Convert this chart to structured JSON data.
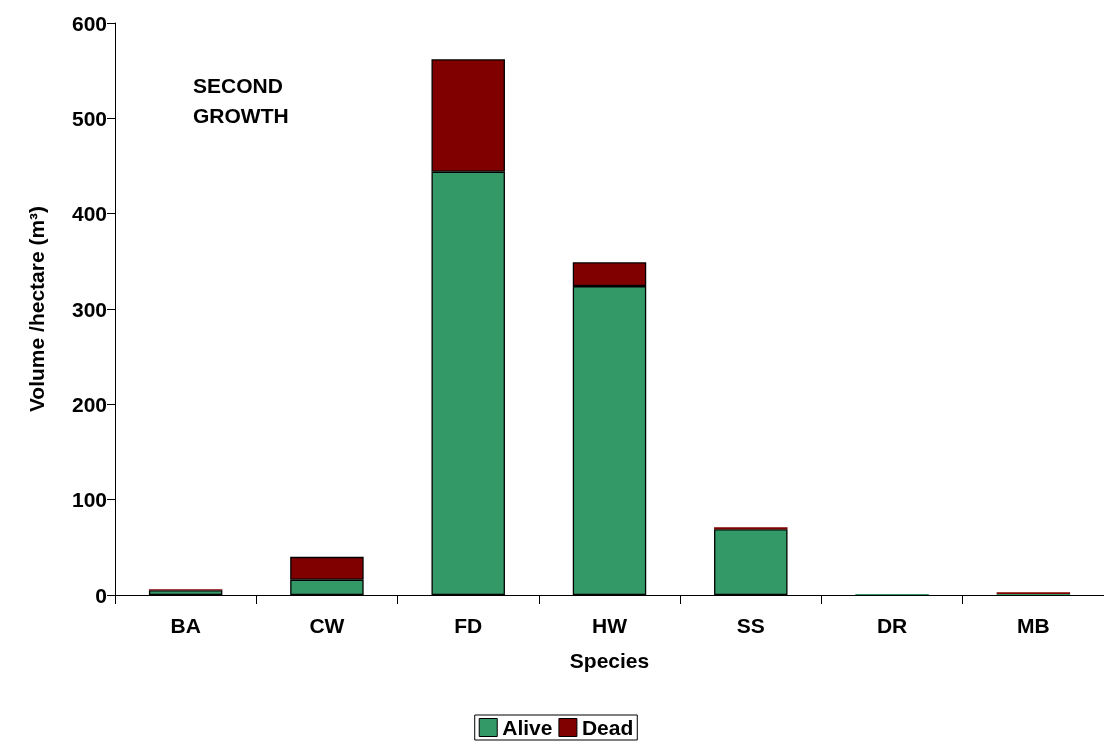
{
  "chart_data": {
    "type": "bar",
    "stacked": true,
    "xlabel": "Species",
    "ylabel": "Volume /hectare (m³)",
    "categories": [
      "BA",
      "CW",
      "FD",
      "HW",
      "SS",
      "DR",
      "MB"
    ],
    "series": [
      {
        "name": "Alive",
        "color": "#339966",
        "values": [
          5,
          16,
          444,
          324,
          69,
          1,
          1
        ]
      },
      {
        "name": "Dead",
        "color": "#800000",
        "values": [
          1,
          24,
          118,
          25,
          2,
          0,
          2
        ]
      }
    ],
    "ylim": [
      0,
      600
    ],
    "yticks": [
      0,
      100,
      200,
      300,
      400,
      500,
      600
    ],
    "grid": false,
    "legend": "bottom",
    "annotations": [
      "SECOND\nGROWTH"
    ]
  }
}
